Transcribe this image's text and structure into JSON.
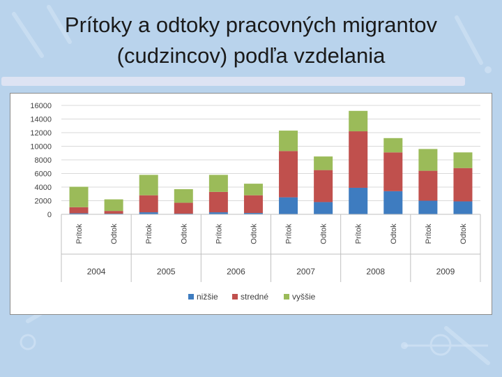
{
  "slide": {
    "title_line1": "Prítoky a odtoky pracovných migrantov",
    "title_line2": "(cudzincov) podľa vzdelania"
  },
  "colors": {
    "background": "#b9d3ec",
    "nizsie": "#3e7cc0",
    "stredne": "#c0504d",
    "vyssie": "#9bbb59"
  },
  "chart_data": {
    "type": "bar",
    "stacked": true,
    "groups": [
      "2004",
      "2005",
      "2006",
      "2007",
      "2008",
      "2009"
    ],
    "categories": [
      "Prítok",
      "Odtok",
      "Prítok",
      "Odtok",
      "Prítok",
      "Odtok",
      "Prítok",
      "Odtok",
      "Prítok",
      "Odtok",
      "Prítok",
      "Odtok"
    ],
    "series": [
      {
        "name": "nižšie",
        "color": "#3e7cc0",
        "values": [
          150,
          100,
          300,
          100,
          300,
          200,
          2500,
          1800,
          3900,
          3400,
          2000,
          1900
        ]
      },
      {
        "name": "stredné",
        "color": "#c0504d",
        "values": [
          900,
          400,
          2500,
          1600,
          3000,
          2600,
          6800,
          4700,
          8300,
          5700,
          4400,
          4900
        ]
      },
      {
        "name": "vyššie",
        "color": "#9bbb59",
        "values": [
          3000,
          1700,
          3000,
          2000,
          2500,
          1700,
          3000,
          2000,
          3000,
          2100,
          3200,
          2300
        ]
      }
    ],
    "yticks": [
      0,
      2000,
      4000,
      6000,
      8000,
      10000,
      12000,
      14000,
      16000
    ],
    "ylim": [
      0,
      16000
    ],
    "grid": true,
    "legend_position": "bottom"
  }
}
